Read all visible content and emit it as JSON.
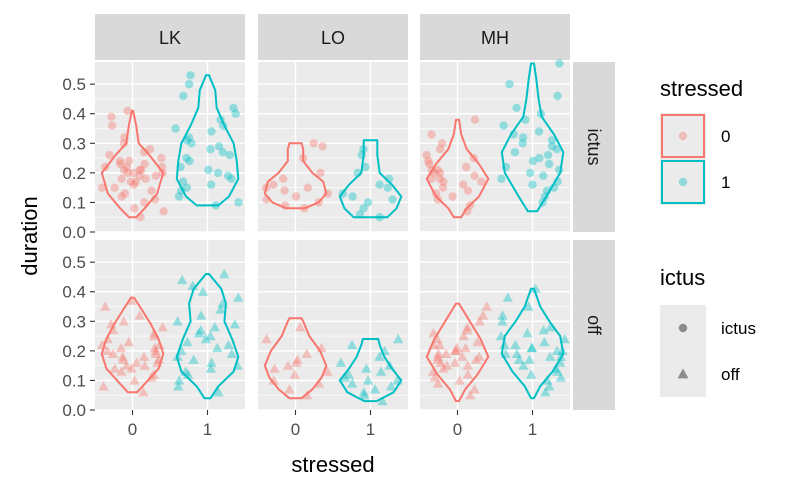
{
  "chart_data": {
    "type": "violin",
    "x": {
      "label": "stressed",
      "categories": [
        "0",
        "1"
      ]
    },
    "y": {
      "label": "duration",
      "ylim": [
        0.0,
        0.575
      ],
      "ticks": [
        "0.0",
        "0.1",
        "0.2",
        "0.3",
        "0.4",
        "0.5"
      ]
    },
    "facet_cols": [
      "LK",
      "LO",
      "MH"
    ],
    "facet_rows": [
      "ictus",
      "off"
    ],
    "legend": {
      "placement": "right",
      "color": {
        "title": "stressed",
        "items": [
          {
            "label": "0",
            "color": "#F8766D"
          },
          {
            "label": "1",
            "color": "#00BFC4"
          }
        ]
      },
      "shape": {
        "title": "ictus",
        "items": [
          {
            "label": "ictus",
            "shape": "circle"
          },
          {
            "label": "off",
            "shape": "triangle"
          }
        ]
      }
    },
    "panels": [
      {
        "col": "LK",
        "row": "ictus",
        "groups": [
          {
            "stressed": "0",
            "min": 0.05,
            "max": 0.41,
            "profile": [
              [
                0.05,
                0.12
              ],
              [
                0.08,
                0.4
              ],
              [
                0.13,
                0.8
              ],
              [
                0.2,
                1.0
              ],
              [
                0.26,
                0.55
              ],
              [
                0.3,
                0.2
              ],
              [
                0.36,
                0.12
              ],
              [
                0.41,
                0.02
              ]
            ],
            "points": [
              0.05,
              0.07,
              0.08,
              0.1,
              0.11,
              0.12,
              0.13,
              0.14,
              0.15,
              0.15,
              0.16,
              0.17,
              0.17,
              0.18,
              0.18,
              0.19,
              0.19,
              0.2,
              0.2,
              0.2,
              0.21,
              0.21,
              0.21,
              0.22,
              0.22,
              0.22,
              0.23,
              0.23,
              0.24,
              0.24,
              0.25,
              0.26,
              0.27,
              0.28,
              0.3,
              0.32,
              0.36,
              0.39,
              0.41
            ]
          },
          {
            "stressed": "1",
            "min": 0.09,
            "max": 0.53,
            "profile": [
              [
                0.09,
                0.35
              ],
              [
                0.12,
                0.7
              ],
              [
                0.18,
                1.0
              ],
              [
                0.24,
                0.95
              ],
              [
                0.3,
                0.85
              ],
              [
                0.36,
                0.55
              ],
              [
                0.42,
                0.3
              ],
              [
                0.48,
                0.25
              ],
              [
                0.53,
                0.05
              ]
            ],
            "points": [
              0.09,
              0.1,
              0.12,
              0.14,
              0.15,
              0.16,
              0.17,
              0.18,
              0.19,
              0.2,
              0.21,
              0.22,
              0.24,
              0.25,
              0.26,
              0.27,
              0.28,
              0.29,
              0.3,
              0.31,
              0.32,
              0.34,
              0.35,
              0.36,
              0.38,
              0.4,
              0.42,
              0.46,
              0.5,
              0.53
            ]
          }
        ]
      },
      {
        "col": "LO",
        "row": "ictus",
        "groups": [
          {
            "stressed": "0",
            "min": 0.08,
            "max": 0.3,
            "profile": [
              [
                0.08,
                0.3
              ],
              [
                0.1,
                0.75
              ],
              [
                0.13,
                1.0
              ],
              [
                0.17,
                0.9
              ],
              [
                0.2,
                0.55
              ],
              [
                0.24,
                0.25
              ],
              [
                0.28,
                0.25
              ],
              [
                0.3,
                0.2
              ]
            ],
            "points": [
              0.08,
              0.09,
              0.1,
              0.11,
              0.12,
              0.13,
              0.14,
              0.15,
              0.15,
              0.16,
              0.18,
              0.2,
              0.25,
              0.29,
              0.3
            ]
          },
          {
            "stressed": "1",
            "min": 0.05,
            "max": 0.31,
            "profile": [
              [
                0.05,
                0.55
              ],
              [
                0.08,
                0.85
              ],
              [
                0.12,
                1.0
              ],
              [
                0.16,
                0.7
              ],
              [
                0.2,
                0.3
              ],
              [
                0.26,
                0.22
              ],
              [
                0.31,
                0.22
              ]
            ],
            "points": [
              0.05,
              0.06,
              0.08,
              0.1,
              0.11,
              0.12,
              0.13,
              0.15,
              0.16,
              0.18,
              0.2,
              0.22,
              0.26,
              0.28
            ]
          }
        ]
      },
      {
        "col": "MH",
        "row": "ictus",
        "groups": [
          {
            "stressed": "0",
            "min": 0.05,
            "max": 0.38,
            "profile": [
              [
                0.05,
                0.12
              ],
              [
                0.08,
                0.3
              ],
              [
                0.12,
                0.7
              ],
              [
                0.18,
                1.0
              ],
              [
                0.23,
                0.7
              ],
              [
                0.28,
                0.3
              ],
              [
                0.33,
                0.12
              ],
              [
                0.38,
                0.05
              ]
            ],
            "points": [
              0.07,
              0.09,
              0.11,
              0.12,
              0.13,
              0.14,
              0.15,
              0.16,
              0.17,
              0.17,
              0.18,
              0.18,
              0.19,
              0.2,
              0.2,
              0.21,
              0.21,
              0.22,
              0.23,
              0.24,
              0.25,
              0.26,
              0.28,
              0.3,
              0.33,
              0.38
            ]
          },
          {
            "stressed": "1",
            "min": 0.07,
            "max": 0.57,
            "profile": [
              [
                0.07,
                0.15
              ],
              [
                0.12,
                0.45
              ],
              [
                0.2,
                0.9
              ],
              [
                0.27,
                1.0
              ],
              [
                0.33,
                0.7
              ],
              [
                0.39,
                0.3
              ],
              [
                0.45,
                0.2
              ],
              [
                0.52,
                0.12
              ],
              [
                0.57,
                0.05
              ]
            ],
            "points": [
              0.1,
              0.12,
              0.14,
              0.15,
              0.16,
              0.17,
              0.18,
              0.19,
              0.2,
              0.21,
              0.22,
              0.23,
              0.24,
              0.25,
              0.26,
              0.27,
              0.28,
              0.29,
              0.3,
              0.31,
              0.32,
              0.33,
              0.34,
              0.36,
              0.38,
              0.4,
              0.42,
              0.46,
              0.5,
              0.57
            ]
          }
        ]
      },
      {
        "col": "LK",
        "row": "off",
        "groups": [
          {
            "stressed": "0",
            "min": 0.06,
            "max": 0.38,
            "profile": [
              [
                0.06,
                0.15
              ],
              [
                0.1,
                0.5
              ],
              [
                0.14,
                0.85
              ],
              [
                0.19,
                1.0
              ],
              [
                0.24,
                0.85
              ],
              [
                0.29,
                0.6
              ],
              [
                0.34,
                0.3
              ],
              [
                0.38,
                0.05
              ]
            ],
            "points": [
              0.06,
              0.08,
              0.1,
              0.11,
              0.12,
              0.13,
              0.14,
              0.14,
              0.15,
              0.15,
              0.16,
              0.16,
              0.17,
              0.17,
              0.18,
              0.18,
              0.19,
              0.19,
              0.2,
              0.2,
              0.21,
              0.21,
              0.22,
              0.22,
              0.23,
              0.24,
              0.25,
              0.26,
              0.27,
              0.28,
              0.29,
              0.3,
              0.32,
              0.35,
              0.37
            ]
          },
          {
            "stressed": "1",
            "min": 0.04,
            "max": 0.46,
            "profile": [
              [
                0.04,
                0.1
              ],
              [
                0.08,
                0.35
              ],
              [
                0.13,
                0.85
              ],
              [
                0.18,
                1.0
              ],
              [
                0.24,
                0.8
              ],
              [
                0.3,
                0.55
              ],
              [
                0.36,
                0.6
              ],
              [
                0.41,
                0.45
              ],
              [
                0.46,
                0.05
              ]
            ],
            "points": [
              0.06,
              0.08,
              0.1,
              0.12,
              0.13,
              0.14,
              0.15,
              0.16,
              0.17,
              0.18,
              0.19,
              0.2,
              0.21,
              0.22,
              0.23,
              0.24,
              0.25,
              0.26,
              0.27,
              0.28,
              0.29,
              0.3,
              0.32,
              0.34,
              0.36,
              0.38,
              0.4,
              0.42,
              0.44,
              0.46
            ]
          }
        ]
      },
      {
        "col": "LO",
        "row": "off",
        "groups": [
          {
            "stressed": "0",
            "min": 0.04,
            "max": 0.31,
            "profile": [
              [
                0.04,
                0.2
              ],
              [
                0.07,
                0.55
              ],
              [
                0.11,
                0.85
              ],
              [
                0.15,
                1.0
              ],
              [
                0.2,
                0.8
              ],
              [
                0.25,
                0.45
              ],
              [
                0.3,
                0.25
              ],
              [
                0.31,
                0.2
              ]
            ],
            "points": [
              0.05,
              0.07,
              0.09,
              0.1,
              0.12,
              0.13,
              0.14,
              0.15,
              0.16,
              0.17,
              0.19,
              0.21,
              0.24,
              0.28
            ]
          },
          {
            "stressed": "1",
            "min": 0.03,
            "max": 0.24,
            "profile": [
              [
                0.03,
                0.2
              ],
              [
                0.06,
                0.75
              ],
              [
                0.1,
                1.0
              ],
              [
                0.14,
                0.7
              ],
              [
                0.18,
                0.45
              ],
              [
                0.22,
                0.3
              ],
              [
                0.24,
                0.25
              ]
            ],
            "points": [
              0.03,
              0.05,
              0.06,
              0.07,
              0.08,
              0.09,
              0.1,
              0.1,
              0.11,
              0.12,
              0.13,
              0.14,
              0.15,
              0.16,
              0.18,
              0.2,
              0.22,
              0.24
            ]
          }
        ]
      },
      {
        "col": "MH",
        "row": "off",
        "groups": [
          {
            "stressed": "0",
            "min": 0.03,
            "max": 0.36,
            "profile": [
              [
                0.03,
                0.05
              ],
              [
                0.07,
                0.25
              ],
              [
                0.12,
                0.65
              ],
              [
                0.18,
                1.0
              ],
              [
                0.24,
                0.75
              ],
              [
                0.3,
                0.4
              ],
              [
                0.36,
                0.05
              ]
            ],
            "points": [
              0.05,
              0.07,
              0.09,
              0.1,
              0.11,
              0.12,
              0.13,
              0.14,
              0.15,
              0.15,
              0.16,
              0.16,
              0.17,
              0.17,
              0.18,
              0.18,
              0.18,
              0.19,
              0.19,
              0.2,
              0.2,
              0.21,
              0.21,
              0.22,
              0.22,
              0.23,
              0.24,
              0.25,
              0.26,
              0.27,
              0.28,
              0.3,
              0.32,
              0.35
            ]
          },
          {
            "stressed": "1",
            "min": 0.04,
            "max": 0.41,
            "profile": [
              [
                0.04,
                0.05
              ],
              [
                0.08,
                0.25
              ],
              [
                0.13,
                0.65
              ],
              [
                0.19,
                1.0
              ],
              [
                0.25,
                0.9
              ],
              [
                0.3,
                0.55
              ],
              [
                0.35,
                0.25
              ],
              [
                0.41,
                0.05
              ]
            ],
            "points": [
              0.06,
              0.08,
              0.1,
              0.11,
              0.12,
              0.13,
              0.14,
              0.15,
              0.16,
              0.17,
              0.17,
              0.18,
              0.18,
              0.19,
              0.19,
              0.2,
              0.2,
              0.21,
              0.21,
              0.22,
              0.22,
              0.23,
              0.24,
              0.25,
              0.26,
              0.27,
              0.28,
              0.3,
              0.32,
              0.35,
              0.38,
              0.41
            ]
          }
        ]
      }
    ]
  }
}
